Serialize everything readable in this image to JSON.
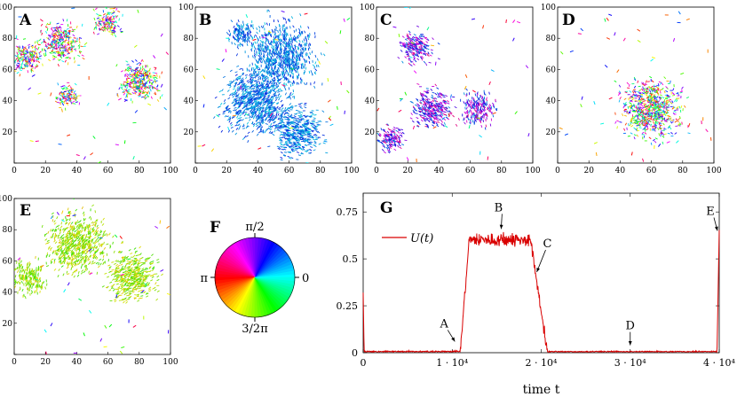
{
  "chart_data": [
    {
      "type": "scatter",
      "panel": "A",
      "xlim": [
        0,
        100
      ],
      "ylim": [
        0,
        100
      ],
      "ticks": [
        0,
        20,
        40,
        60,
        80,
        100
      ],
      "clusters": [
        {
          "x": 30,
          "y": 77,
          "r": 12
        },
        {
          "x": 80,
          "y": 52,
          "r": 12
        },
        {
          "x": 60,
          "y": 90,
          "r": 8
        },
        {
          "x": 8,
          "y": 68,
          "r": 9
        },
        {
          "x": 34,
          "y": 43,
          "r": 7
        }
      ],
      "coloring": "random"
    },
    {
      "type": "scatter",
      "panel": "B",
      "xlim": [
        0,
        100
      ],
      "ylim": [
        0,
        100
      ],
      "ticks": [
        0,
        20,
        40,
        60,
        80,
        100
      ],
      "clusters": [
        {
          "x": 55,
          "y": 70,
          "r": 20
        },
        {
          "x": 40,
          "y": 40,
          "r": 20
        },
        {
          "x": 65,
          "y": 20,
          "r": 15
        },
        {
          "x": 30,
          "y": 82,
          "r": 8
        }
      ],
      "coloring": "aligned-blue"
    },
    {
      "type": "scatter",
      "panel": "C",
      "xlim": [
        0,
        100
      ],
      "ylim": [
        0,
        100
      ],
      "ticks": [
        0,
        20,
        40,
        60,
        80,
        100
      ],
      "clusters": [
        {
          "x": 65,
          "y": 35,
          "r": 10
        },
        {
          "x": 25,
          "y": 75,
          "r": 10
        },
        {
          "x": 35,
          "y": 35,
          "r": 12
        },
        {
          "x": 10,
          "y": 15,
          "r": 8
        }
      ],
      "coloring": "mixed"
    },
    {
      "type": "scatter",
      "panel": "D",
      "xlim": [
        0,
        100
      ],
      "ylim": [
        0,
        100
      ],
      "ticks": [
        0,
        20,
        40,
        60,
        80,
        100
      ],
      "clusters": [
        {
          "x": 60,
          "y": 35,
          "r": 18
        }
      ],
      "coloring": "random"
    },
    {
      "type": "scatter",
      "panel": "E",
      "xlim": [
        0,
        100
      ],
      "ylim": [
        0,
        100
      ],
      "ticks": [
        0,
        20,
        40,
        60,
        80,
        100
      ],
      "clusters": [
        {
          "x": 40,
          "y": 70,
          "r": 18
        },
        {
          "x": 75,
          "y": 50,
          "r": 15
        },
        {
          "x": 10,
          "y": 50,
          "r": 10
        }
      ],
      "coloring": "aligned-green"
    },
    {
      "type": "pie",
      "panel": "F",
      "labels": [
        "π/2",
        "0",
        "3/2π",
        "π"
      ]
    },
    {
      "type": "line",
      "panel": "G",
      "xlabel": "time t",
      "xlim": [
        0,
        40000
      ],
      "ylim": [
        0,
        0.85
      ],
      "xticks": [
        0,
        10000,
        20000,
        30000,
        40000
      ],
      "xtick_labels": [
        "0",
        "1 · 10⁴",
        "2 · 10⁴",
        "3 · 10⁴",
        "4 · 10⁴"
      ],
      "yticks": [
        0,
        0.25,
        0.5,
        0.75
      ],
      "ytick_labels": [
        "0",
        "0.25",
        "0.5",
        "0.75"
      ],
      "series": [
        {
          "name": "U(t)",
          "color": "#d90000",
          "segments": [
            {
              "t0": 0,
              "t1": 150,
              "v": 0.3
            },
            {
              "t0": 150,
              "t1": 1200,
              "v": 0.01
            },
            {
              "t0": 1200,
              "t1": 11000,
              "v": 0.005
            },
            {
              "t0": 11000,
              "t1": 12000,
              "v": 0.6
            },
            {
              "t0": 12000,
              "t1": 19000,
              "v": 0.6
            },
            {
              "t0": 19000,
              "t1": 20800,
              "v": 0.0
            },
            {
              "t0": 20800,
              "t1": 39800,
              "v": 0.005
            },
            {
              "t0": 39800,
              "t1": 40000,
              "v": 0.65
            }
          ]
        }
      ],
      "annotations": [
        {
          "text": "A",
          "t": 10300,
          "y": 0.05
        },
        {
          "text": "B",
          "t": 15500,
          "y": 0.65
        },
        {
          "text": "C",
          "t": 19500,
          "y": 0.42
        },
        {
          "text": "D",
          "t": 30000,
          "y": 0.03
        },
        {
          "text": "E",
          "t": 39800,
          "y": 0.64
        }
      ]
    }
  ],
  "panel_labels": {
    "A": "A",
    "B": "B",
    "C": "C",
    "D": "D",
    "E": "E",
    "F": "F",
    "G": "G"
  }
}
